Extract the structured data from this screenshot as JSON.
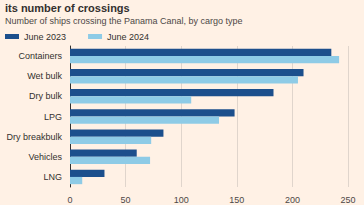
{
  "chart_data": {
    "type": "bar",
    "title": "its number of crossings",
    "subtitle": "Number of ships crossing the Panama Canal, by cargo type",
    "orientation": "horizontal",
    "categories": [
      "Containers",
      "Wet bulk",
      "Dry bulk",
      "LPG",
      "Dry breakbulk",
      "Vehicles",
      "LNG"
    ],
    "series": [
      {
        "name": "June 2023",
        "color": "#1c4f8c",
        "values": [
          235,
          210,
          183,
          148,
          84,
          60,
          31
        ]
      },
      {
        "name": "June 2024",
        "color": "#8ecbe6",
        "values": [
          242,
          205,
          109,
          134,
          73,
          72,
          11
        ]
      }
    ],
    "xlim": [
      0,
      250
    ],
    "xticks": [
      0,
      50,
      100,
      150,
      200,
      250
    ],
    "grid": true,
    "legend": "top-left"
  }
}
